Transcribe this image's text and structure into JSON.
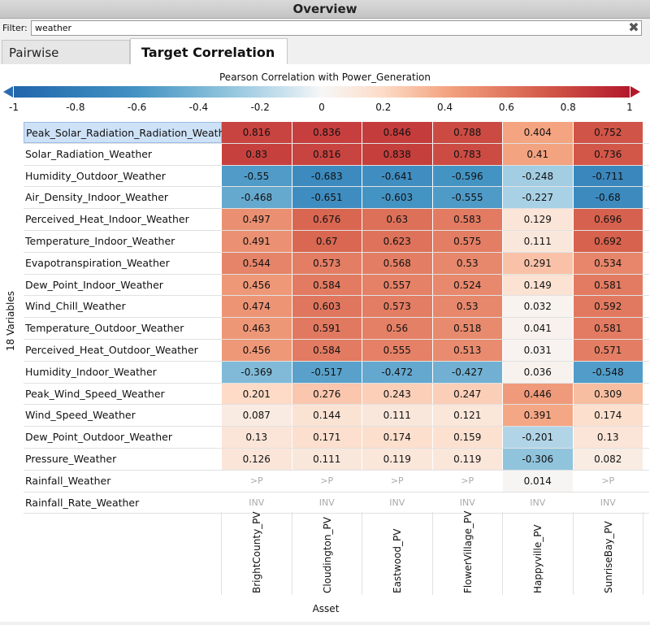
{
  "title": "Overview",
  "filter": {
    "label": "Filter:",
    "value": "weather"
  },
  "tabs": [
    {
      "label": "Pairwise Correlation"
    },
    {
      "label": "Target Correlation"
    }
  ],
  "legend": {
    "title": "Pearson Correlation with Power_Generation",
    "ticks": [
      "-1",
      "-0.8",
      "-0.6",
      "-0.4",
      "-0.2",
      "0",
      "0.2",
      "0.4",
      "0.6",
      "0.8",
      "1"
    ],
    "color_negative": "#2166ac",
    "color_neutral": "#f7f7f7",
    "color_positive": "#b2182b"
  },
  "y_axis_label": "18 Variables",
  "x_axis_label": "Asset",
  "chart_data": {
    "type": "heatmap",
    "title": "Pearson Correlation with Power_Generation",
    "ylabel": "18 Variables",
    "xlabel": "Asset",
    "columns": [
      "BrightCounty_PV",
      "Cloudington_PV",
      "Eastwood_PV",
      "FlowerVillage_PV",
      "Happyville_PV",
      "SunriseBay_PV"
    ],
    "rows": [
      {
        "name": "Peak_Solar_Radiation_Radiation_Weather",
        "values": [
          "0.816",
          "0.836",
          "0.846",
          "0.788",
          "0.404",
          "0.752"
        ]
      },
      {
        "name": "Solar_Radiation_Weather",
        "values": [
          "0.83",
          "0.816",
          "0.838",
          "0.783",
          "0.41",
          "0.736"
        ]
      },
      {
        "name": "Humidity_Outdoor_Weather",
        "values": [
          "-0.55",
          "-0.683",
          "-0.641",
          "-0.596",
          "-0.248",
          "-0.711"
        ]
      },
      {
        "name": "Air_Density_Indoor_Weather",
        "values": [
          "-0.468",
          "-0.651",
          "-0.603",
          "-0.555",
          "-0.227",
          "-0.68"
        ]
      },
      {
        "name": "Perceived_Heat_Indoor_Weather",
        "values": [
          "0.497",
          "0.676",
          "0.63",
          "0.583",
          "0.129",
          "0.696"
        ]
      },
      {
        "name": "Temperature_Indoor_Weather",
        "values": [
          "0.491",
          "0.67",
          "0.623",
          "0.575",
          "0.111",
          "0.692"
        ]
      },
      {
        "name": "Evapotranspiration_Weather",
        "values": [
          "0.544",
          "0.573",
          "0.568",
          "0.53",
          "0.291",
          "0.534"
        ]
      },
      {
        "name": "Dew_Point_Indoor_Weather",
        "values": [
          "0.456",
          "0.584",
          "0.557",
          "0.524",
          "0.149",
          "0.581"
        ]
      },
      {
        "name": "Wind_Chill_Weather",
        "values": [
          "0.474",
          "0.603",
          "0.573",
          "0.53",
          "0.032",
          "0.592"
        ]
      },
      {
        "name": "Temperature_Outdoor_Weather",
        "values": [
          "0.463",
          "0.591",
          "0.56",
          "0.518",
          "0.041",
          "0.581"
        ]
      },
      {
        "name": "Perceived_Heat_Outdoor_Weather",
        "values": [
          "0.456",
          "0.584",
          "0.555",
          "0.513",
          "0.031",
          "0.571"
        ]
      },
      {
        "name": "Humidity_Indoor_Weather",
        "values": [
          "-0.369",
          "-0.517",
          "-0.472",
          "-0.427",
          "0.036",
          "-0.548"
        ]
      },
      {
        "name": "Peak_Wind_Speed_Weather",
        "values": [
          "0.201",
          "0.276",
          "0.243",
          "0.247",
          "0.446",
          "0.309"
        ]
      },
      {
        "name": "Wind_Speed_Weather",
        "values": [
          "0.087",
          "0.144",
          "0.111",
          "0.121",
          "0.391",
          "0.174"
        ]
      },
      {
        "name": "Dew_Point_Outdoor_Weather",
        "values": [
          "0.13",
          "0.171",
          "0.174",
          "0.159",
          "-0.201",
          "0.13"
        ]
      },
      {
        "name": "Pressure_Weather",
        "values": [
          "0.126",
          "0.111",
          "0.119",
          "0.119",
          "-0.306",
          "0.082"
        ]
      },
      {
        "name": "Rainfall_Weather",
        "values": [
          ">P",
          ">P",
          ">P",
          ">P",
          "0.014",
          ">P"
        ]
      },
      {
        "name": "Rainfall_Rate_Weather",
        "values": [
          "INV",
          "INV",
          "INV",
          "INV",
          "INV",
          "INV"
        ]
      }
    ],
    "color_range": [
      -1,
      1
    ]
  }
}
